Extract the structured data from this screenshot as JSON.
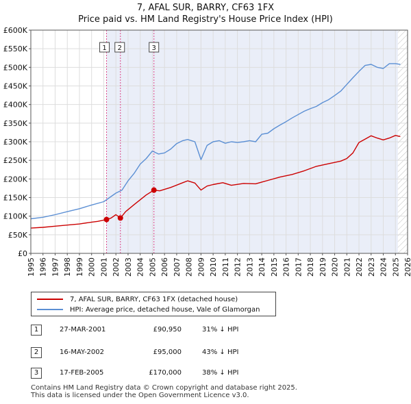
{
  "title_line1": "7, AFAL SUR, BARRY, CF63 1FX",
  "title_line2": "Price paid vs. HM Land Registry's House Price Index (HPI)",
  "chart_data": {
    "type": "line",
    "xlim": [
      1995,
      2026
    ],
    "ylim": [
      0,
      600000
    ],
    "x_ticks": [
      1995,
      1996,
      1997,
      1998,
      1999,
      2000,
      2001,
      2002,
      2003,
      2004,
      2005,
      2006,
      2007,
      2008,
      2009,
      2010,
      2011,
      2012,
      2013,
      2014,
      2015,
      2016,
      2017,
      2018,
      2019,
      2020,
      2021,
      2022,
      2023,
      2024,
      2025,
      2026
    ],
    "y_ticks": [
      0,
      50000,
      100000,
      150000,
      200000,
      250000,
      300000,
      350000,
      400000,
      450000,
      500000,
      550000,
      600000
    ],
    "y_tick_labels": [
      "£0",
      "£50K",
      "£100K",
      "£150K",
      "£200K",
      "£250K",
      "£300K",
      "£350K",
      "£400K",
      "£450K",
      "£500K",
      "£550K",
      "£600K"
    ],
    "grid": true,
    "series": [
      {
        "name": "7, AFAL SUR, BARRY, CF63 1FX (detached house)",
        "color": "#cc0000",
        "x": [
          1995,
          1996,
          1997,
          1998,
          1999,
          2000,
          2000.5,
          2001.23,
          2001.6,
          2002.0,
          2002.37,
          2002.8,
          2003.5,
          2004.5,
          2005.13,
          2005.6,
          2006.5,
          2007.5,
          2007.9,
          2008.5,
          2009.0,
          2009.5,
          2010.0,
          2010.8,
          2011.5,
          2012.5,
          2013.5,
          2014.5,
          2015.5,
          2016.5,
          2017.5,
          2018.5,
          2019.5,
          2020.5,
          2021.0,
          2021.5,
          2022.0,
          2022.5,
          2023.0,
          2023.5,
          2024.0,
          2024.5,
          2025.0,
          2025.4
        ],
        "y": [
          68000,
          70000,
          73000,
          76000,
          79000,
          84000,
          86000,
          90950,
          95000,
          104000,
          95000,
          112000,
          131000,
          157000,
          170000,
          168000,
          177000,
          190000,
          195000,
          189000,
          170000,
          181000,
          185000,
          190000,
          183000,
          188000,
          187000,
          196000,
          205000,
          212000,
          222000,
          234000,
          241000,
          248000,
          255000,
          270000,
          298000,
          307000,
          316000,
          310000,
          305000,
          310000,
          317000,
          314000
        ]
      },
      {
        "name": "HPI: Average price, detached house, Vale of Glamorgan",
        "color": "#5b8fd4",
        "x": [
          1995,
          1996,
          1997,
          1998,
          1999,
          2000,
          2001,
          2002,
          2002.5,
          2003,
          2003.5,
          2004,
          2004.5,
          2005,
          2005.5,
          2006,
          2006.5,
          2007,
          2007.5,
          2007.9,
          2008.5,
          2009.0,
          2009.5,
          2010,
          2010.5,
          2011,
          2011.5,
          2012,
          2012.5,
          2013,
          2013.5,
          2014,
          2014.5,
          2015,
          2015.5,
          2016,
          2016.5,
          2017,
          2017.5,
          2018,
          2018.5,
          2019,
          2019.5,
          2020,
          2020.5,
          2021,
          2021.5,
          2022,
          2022.5,
          2023,
          2023.5,
          2024,
          2024.5,
          2025,
          2025.4
        ],
        "y": [
          93000,
          97000,
          104000,
          112000,
          120000,
          130000,
          139000,
          162000,
          170000,
          195000,
          215000,
          240000,
          255000,
          275000,
          267000,
          270000,
          280000,
          295000,
          303000,
          306000,
          300000,
          252000,
          290000,
          300000,
          303000,
          296000,
          300000,
          298000,
          300000,
          303000,
          300000,
          320000,
          323000,
          335000,
          345000,
          354000,
          364000,
          373000,
          382000,
          389000,
          395000,
          405000,
          413000,
          424000,
          436000,
          454000,
          472000,
          489000,
          505000,
          508000,
          500000,
          497000,
          510000,
          510000,
          508000
        ]
      }
    ],
    "sales": [
      {
        "label": "1",
        "x": 2001.23,
        "y": 90950
      },
      {
        "label": "2",
        "x": 2002.37,
        "y": 95000
      },
      {
        "label": "3",
        "x": 2005.13,
        "y": 170000
      }
    ],
    "hatch_from": 2025.2
  },
  "legend": {
    "property_label": "7, AFAL SUR, BARRY, CF63 1FX (detached house)",
    "hpi_label": "HPI: Average price, detached house, Vale of Glamorgan",
    "property_color": "#cc0000",
    "hpi_color": "#5b8fd4"
  },
  "sales_table": [
    {
      "num": "1",
      "date": "27-MAR-2001",
      "price": "£90,950",
      "pct": "31% ↓ HPI"
    },
    {
      "num": "2",
      "date": "16-MAY-2002",
      "price": "£95,000",
      "pct": "43% ↓ HPI"
    },
    {
      "num": "3",
      "date": "17-FEB-2005",
      "price": "£170,000",
      "pct": "38% ↓ HPI"
    }
  ],
  "footer": {
    "line1": "Contains HM Land Registry data © Crown copyright and database right 2025.",
    "line2": "This data is licensed under the Open Government Licence v3.0."
  }
}
